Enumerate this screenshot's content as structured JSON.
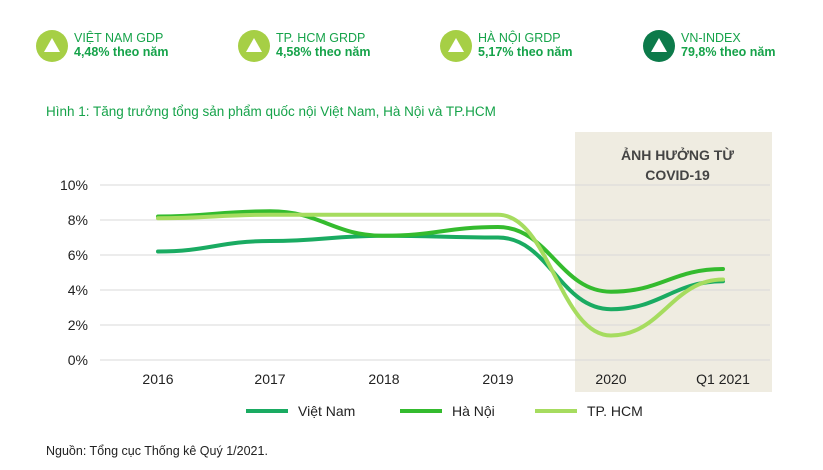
{
  "kpis": [
    {
      "label": "VIỆT NAM GDP",
      "value": "4,48% theo năm",
      "icon": "triangle-up-icon",
      "color": "#a6cf45",
      "text_color": "#16a34a"
    },
    {
      "label": "TP. HCM GRDP",
      "value": "4,58% theo năm",
      "icon": "triangle-up-icon",
      "color": "#a6cf45",
      "text_color": "#16a34a"
    },
    {
      "label": "HÀ NỘI GRDP",
      "value": "5,17% theo năm",
      "icon": "triangle-up-icon",
      "color": "#a6cf45",
      "text_color": "#16a34a"
    },
    {
      "label": "VN-INDEX",
      "value": "79,8% theo năm",
      "icon": "triangle-up-icon",
      "color": "#0c7a4a",
      "text_color": "#16a34a"
    }
  ],
  "figure_title": "Hình 1: Tăng trưởng tổng sản phẩm quốc nội Việt Nam, Hà Nội và TP.HCM",
  "source": "Nguồn: Tổng cục Thống kê Quý 1/2021.",
  "chart_data": {
    "type": "line",
    "title": "Hình 1: Tăng trưởng tổng sản phẩm quốc nội Việt Nam, Hà Nội và TP.HCM",
    "xlabel": "",
    "ylabel": "",
    "categories": [
      "2016",
      "2017",
      "2018",
      "2019",
      "2020",
      "Q1 2021"
    ],
    "y_ticks": [
      "0%",
      "2%",
      "4%",
      "6%",
      "8%",
      "10%"
    ],
    "ylim": [
      0,
      10
    ],
    "grid": true,
    "annotation": {
      "lines": [
        "ẢNH HƯỞNG TỪ",
        "COVID-19"
      ],
      "from_category": "2020",
      "to_category": "Q1 2021",
      "color": "#efece1"
    },
    "series": [
      {
        "name": "Việt Nam",
        "color": "#1aab62",
        "values": [
          6.2,
          6.8,
          7.1,
          7.0,
          2.9,
          4.5
        ]
      },
      {
        "name": "Hà Nội",
        "color": "#34bb2e",
        "values": [
          8.2,
          8.5,
          7.1,
          7.6,
          3.9,
          5.2
        ]
      },
      {
        "name": "TP. HCM",
        "color": "#a6dc5f",
        "values": [
          8.1,
          8.3,
          8.3,
          8.3,
          1.4,
          4.6
        ]
      }
    ]
  }
}
